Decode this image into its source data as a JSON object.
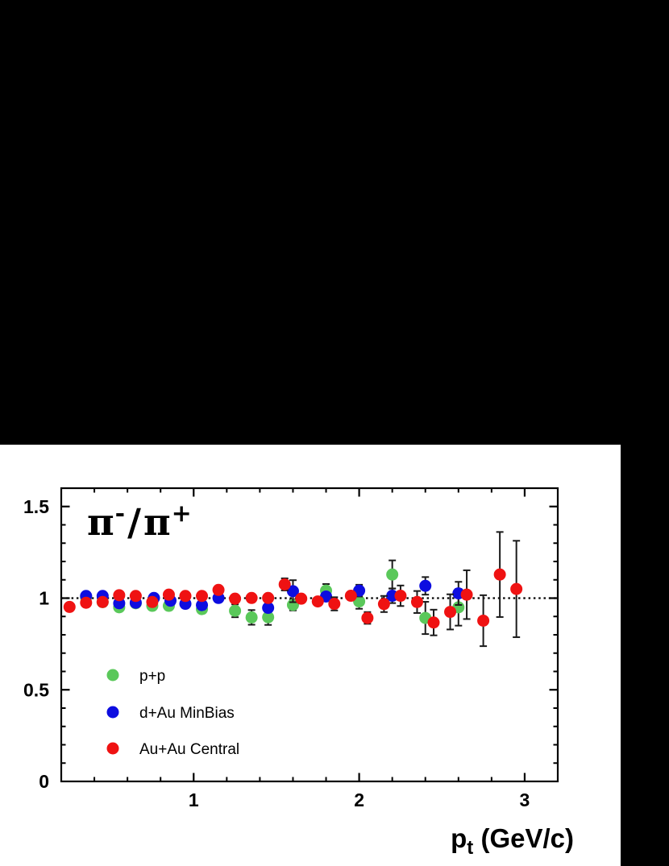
{
  "page": {
    "background_color": "#ffffff",
    "letterbox_color": "#000000"
  },
  "chart_data": {
    "type": "scatter",
    "title": "π-/π+",
    "title_parts": {
      "pi": "π",
      "sup_minus": "-",
      "slash": "/",
      "sup_plus": "+"
    },
    "xlabel": "p_t (GeV/c)",
    "xlabel_parts": {
      "p": "p",
      "sub": "t",
      "rest": " (GeV/c)"
    },
    "ylabel": "",
    "x_range": [
      0.2,
      3.2
    ],
    "y_range": [
      0,
      1.6
    ],
    "x_major_ticks": [
      {
        "v": 1,
        "label": "1"
      },
      {
        "v": 2,
        "label": "2"
      },
      {
        "v": 3,
        "label": "3"
      }
    ],
    "x_minor_step": 0.2,
    "y_major_ticks": [
      {
        "v": 0,
        "label": "0"
      },
      {
        "v": 0.5,
        "label": "0.5"
      },
      {
        "v": 1,
        "label": "1"
      },
      {
        "v": 1.5,
        "label": "1.5"
      }
    ],
    "y_minor_step": 0.1,
    "reference_line_y": 1.0,
    "grid": false,
    "legend_position": "lower-left",
    "marker_radius": 7.5,
    "error_bar_color": "#1a1a1a",
    "series": [
      {
        "name": "p+p",
        "color": "#5ac85a",
        "points": [
          {
            "x": 0.35,
            "y": 1.005,
            "e": 0
          },
          {
            "x": 0.45,
            "y": 0.978,
            "e": 0
          },
          {
            "x": 0.55,
            "y": 0.95,
            "e": 0
          },
          {
            "x": 0.65,
            "y": 0.972,
            "e": 0
          },
          {
            "x": 0.75,
            "y": 0.958,
            "e": 0
          },
          {
            "x": 0.85,
            "y": 0.958,
            "e": 0
          },
          {
            "x": 1.05,
            "y": 0.94,
            "e": 0
          },
          {
            "x": 1.25,
            "y": 0.931,
            "e": 0.035
          },
          {
            "x": 1.35,
            "y": 0.895,
            "e": 0.04
          },
          {
            "x": 1.45,
            "y": 0.896,
            "e": 0.042
          },
          {
            "x": 1.6,
            "y": 0.963,
            "e": 0.03
          },
          {
            "x": 1.8,
            "y": 1.041,
            "e": 0.036
          },
          {
            "x": 2.0,
            "y": 0.982,
            "e": 0.04
          },
          {
            "x": 2.2,
            "y": 1.129,
            "e": 0.077
          },
          {
            "x": 2.4,
            "y": 0.892,
            "e": 0.088
          },
          {
            "x": 2.6,
            "y": 0.95,
            "e": 0.1
          }
        ]
      },
      {
        "name": "d+Au  MinBias",
        "color": "#0d0de0",
        "points": [
          {
            "x": 0.35,
            "y": 1.012,
            "e": 0
          },
          {
            "x": 0.45,
            "y": 1.012,
            "e": 0
          },
          {
            "x": 0.55,
            "y": 0.972,
            "e": 0
          },
          {
            "x": 0.65,
            "y": 0.975,
            "e": 0
          },
          {
            "x": 0.76,
            "y": 1.001,
            "e": 0
          },
          {
            "x": 0.86,
            "y": 0.986,
            "e": 0
          },
          {
            "x": 0.95,
            "y": 0.969,
            "e": 0
          },
          {
            "x": 1.05,
            "y": 0.962,
            "e": 0
          },
          {
            "x": 1.15,
            "y": 1.001,
            "e": 0
          },
          {
            "x": 1.45,
            "y": 0.947,
            "e": 0
          },
          {
            "x": 1.6,
            "y": 1.038,
            "e": 0.06
          },
          {
            "x": 1.8,
            "y": 1.009,
            "e": 0
          },
          {
            "x": 2.0,
            "y": 1.041,
            "e": 0.032
          },
          {
            "x": 2.2,
            "y": 1.013,
            "e": 0.04
          },
          {
            "x": 2.4,
            "y": 1.067,
            "e": 0.048
          },
          {
            "x": 2.6,
            "y": 1.026,
            "e": 0.063
          }
        ]
      },
      {
        "name": "Au+Au Central",
        "color": "#ef1212",
        "points": [
          {
            "x": 0.25,
            "y": 0.952,
            "e": 0
          },
          {
            "x": 0.35,
            "y": 0.975,
            "e": 0
          },
          {
            "x": 0.45,
            "y": 0.979,
            "e": 0
          },
          {
            "x": 0.55,
            "y": 1.016,
            "e": 0
          },
          {
            "x": 0.65,
            "y": 1.012,
            "e": 0
          },
          {
            "x": 0.75,
            "y": 0.979,
            "e": 0
          },
          {
            "x": 0.85,
            "y": 1.019,
            "e": 0
          },
          {
            "x": 0.95,
            "y": 1.012,
            "e": 0
          },
          {
            "x": 1.05,
            "y": 1.012,
            "e": 0
          },
          {
            "x": 1.15,
            "y": 1.045,
            "e": 0
          },
          {
            "x": 1.25,
            "y": 0.997,
            "e": 0
          },
          {
            "x": 1.35,
            "y": 1.001,
            "e": 0
          },
          {
            "x": 1.45,
            "y": 1.001,
            "e": 0
          },
          {
            "x": 1.55,
            "y": 1.075,
            "e": 0.033
          },
          {
            "x": 1.65,
            "y": 0.997,
            "e": 0
          },
          {
            "x": 1.75,
            "y": 0.982,
            "e": 0
          },
          {
            "x": 1.85,
            "y": 0.969,
            "e": 0.036
          },
          {
            "x": 1.95,
            "y": 1.013,
            "e": 0
          },
          {
            "x": 2.05,
            "y": 0.892,
            "e": 0.032
          },
          {
            "x": 2.15,
            "y": 0.968,
            "e": 0.044
          },
          {
            "x": 2.25,
            "y": 1.013,
            "e": 0.056
          },
          {
            "x": 2.35,
            "y": 0.979,
            "e": 0.06
          },
          {
            "x": 2.45,
            "y": 0.867,
            "e": 0.07
          },
          {
            "x": 2.55,
            "y": 0.925,
            "e": 0.096
          },
          {
            "x": 2.65,
            "y": 1.019,
            "e": 0.133
          },
          {
            "x": 2.75,
            "y": 0.877,
            "e": 0.139
          },
          {
            "x": 2.85,
            "y": 1.129,
            "e": 0.232
          },
          {
            "x": 2.95,
            "y": 1.05,
            "e": 0.263
          }
        ]
      }
    ]
  }
}
